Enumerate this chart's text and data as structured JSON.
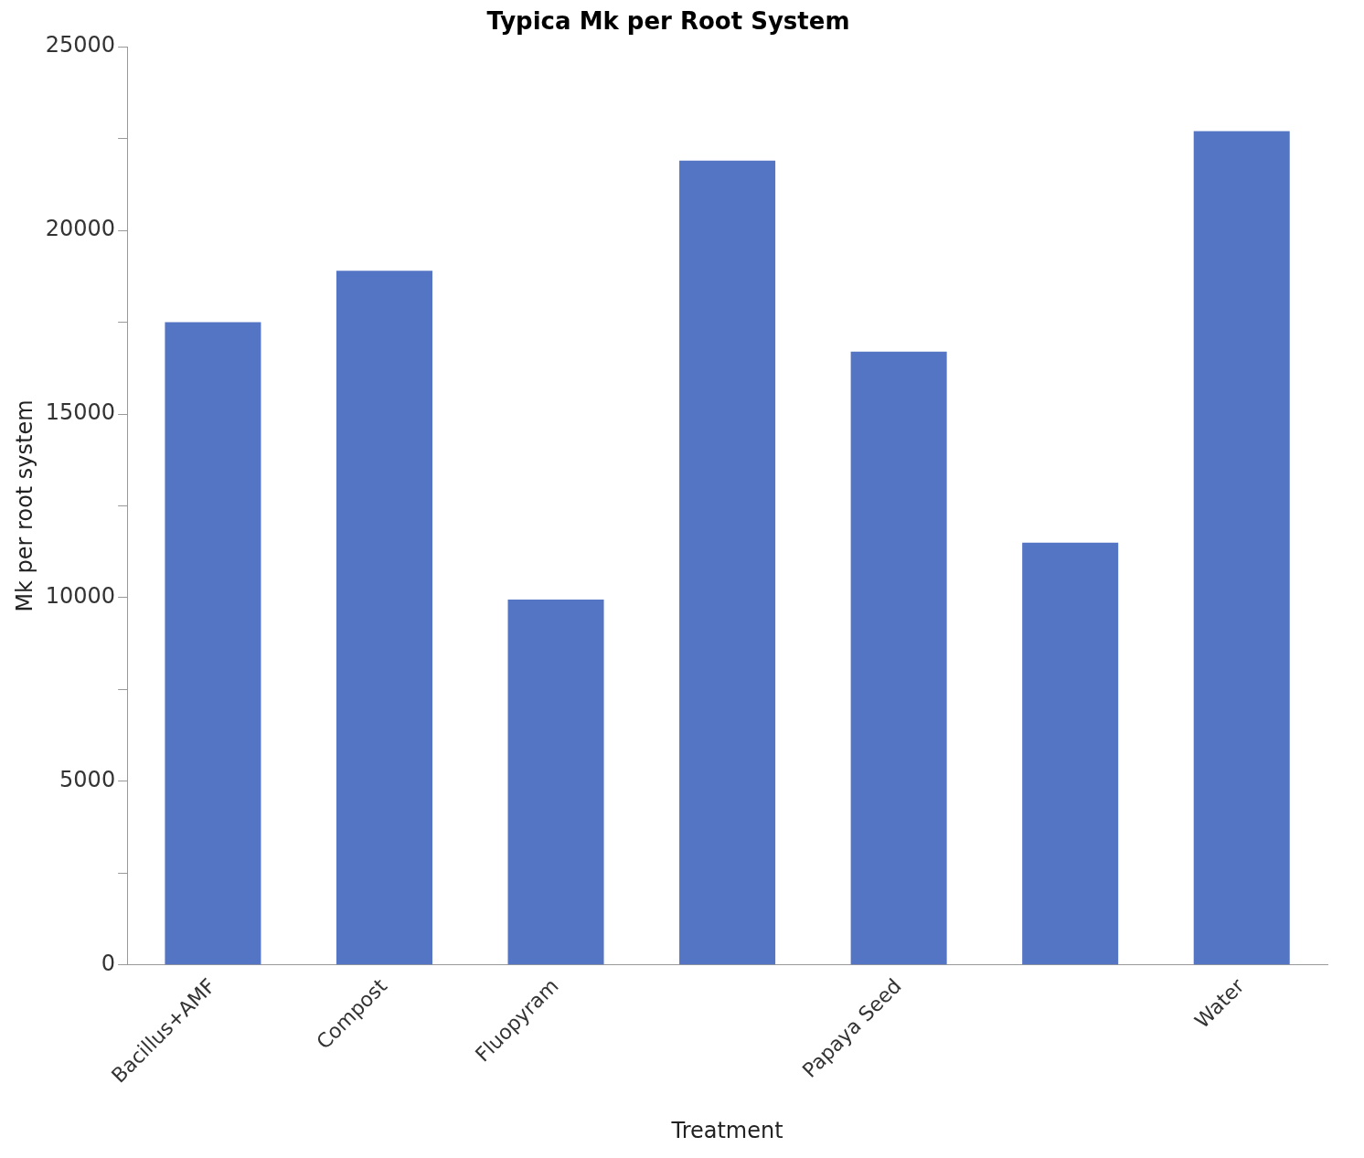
{
  "chart_data": {
    "type": "bar",
    "title": "Typica Mk per Root System",
    "xlabel": "Treatment",
    "ylabel": "Mk per root system",
    "categories": [
      "Bacillus+AMF",
      "Compost",
      "Fluopyram",
      null,
      "Papaya Seed",
      null,
      "Water"
    ],
    "values": [
      17500,
      18900,
      9950,
      21900,
      16700,
      11500,
      22700
    ],
    "color": "#5474c4",
    "ylim": [
      0,
      25000
    ],
    "yticks": [
      0,
      {
        "value": 2500,
        "label": null
      },
      5000,
      {
        "value": 7500,
        "label": null
      },
      10000,
      {
        "value": 12500,
        "label": null
      },
      15000,
      {
        "value": 17500,
        "label": null
      },
      20000,
      {
        "value": 22500,
        "label": null
      },
      25000
    ],
    "grid": false,
    "legend": false
  }
}
